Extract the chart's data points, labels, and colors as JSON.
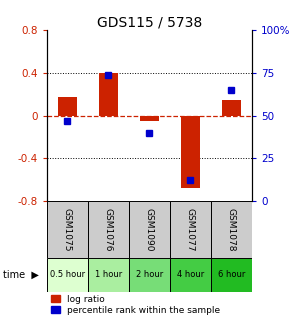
{
  "title": "GDS115 / 5738",
  "samples": [
    "GSM1075",
    "GSM1076",
    "GSM1090",
    "GSM1077",
    "GSM1078"
  ],
  "time_labels": [
    "0.5 hour",
    "1 hour",
    "2 hour",
    "4 hour",
    "6 hour"
  ],
  "time_colors": [
    "#ddffd0",
    "#aaeea0",
    "#77dd77",
    "#44cc44",
    "#22bb22"
  ],
  "log_ratio": [
    0.17,
    0.4,
    -0.05,
    -0.68,
    0.15
  ],
  "percentile": [
    47,
    74,
    40,
    12,
    65
  ],
  "ylim_left": [
    -0.8,
    0.8
  ],
  "ylim_right": [
    0,
    100
  ],
  "bar_color": "#cc2200",
  "dot_color": "#0000cc",
  "bg_color": "#ffffff",
  "zero_line_color": "#cc2200",
  "dotted_line_color": "#000000",
  "left_yticks": [
    -0.8,
    -0.4,
    0,
    0.4,
    0.8
  ],
  "right_yticks": [
    0,
    25,
    50,
    75,
    100
  ]
}
